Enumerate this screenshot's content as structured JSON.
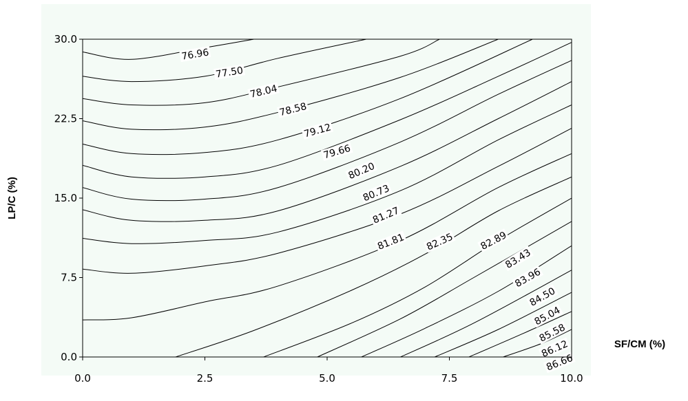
{
  "chart_data": {
    "type": "contour",
    "title": "",
    "xlabel": "SF/CM (%)",
    "ylabel": "LP/C (%)",
    "xlim": [
      0,
      10
    ],
    "ylim": [
      0,
      30
    ],
    "xticks": [
      "0.0",
      "2.5",
      "5.0",
      "7.5",
      "10.0"
    ],
    "yticks": [
      "0.0",
      "7.5",
      "15.0",
      "22.5",
      "30.0"
    ],
    "background_color": "#f4fbf6",
    "line_color": "#000000",
    "contours": [
      {
        "level": "76.96",
        "points": [
          [
            0,
            28.8
          ],
          [
            1,
            28.1
          ],
          [
            2.5,
            29.2
          ],
          [
            3.5,
            30
          ]
        ],
        "label_at": [
          2.3,
          28.6
        ]
      },
      {
        "level": "77.50",
        "points": [
          [
            0,
            26.5
          ],
          [
            1,
            26.0
          ],
          [
            2.5,
            26.5
          ],
          [
            4,
            28.2
          ],
          [
            5.8,
            30
          ]
        ],
        "label_at": [
          3.0,
          26.9
        ]
      },
      {
        "level": "78.04",
        "points": [
          [
            0,
            24.4
          ],
          [
            1,
            23.8
          ],
          [
            2.5,
            24.0
          ],
          [
            4,
            25.5
          ],
          [
            6.5,
            28.4
          ],
          [
            7.3,
            30
          ]
        ],
        "label_at": [
          3.7,
          25.1
        ]
      },
      {
        "level": "78.58",
        "points": [
          [
            0,
            22.3
          ],
          [
            1,
            21.5
          ],
          [
            2.5,
            21.7
          ],
          [
            4,
            23.1
          ],
          [
            6.5,
            26.4
          ],
          [
            8.5,
            30
          ]
        ],
        "label_at": [
          4.3,
          23.4
        ]
      },
      {
        "level": "79.12",
        "points": [
          [
            0,
            20.1
          ],
          [
            1,
            19.2
          ],
          [
            2.5,
            19.3
          ],
          [
            4,
            20.5
          ],
          [
            6.5,
            24.4
          ],
          [
            9.2,
            30
          ]
        ],
        "label_at": [
          4.8,
          21.4
        ]
      },
      {
        "level": "79.66",
        "points": [
          [
            0,
            18.1
          ],
          [
            1,
            17.0
          ],
          [
            2.5,
            17.0
          ],
          [
            4,
            18.1
          ],
          [
            6.5,
            22.4
          ],
          [
            8.5,
            26.5
          ],
          [
            10,
            29.7
          ]
        ],
        "label_at": [
          5.2,
          19.4
        ]
      },
      {
        "level": "80.20",
        "points": [
          [
            0,
            16.0
          ],
          [
            1,
            14.9
          ],
          [
            2.5,
            14.9
          ],
          [
            4,
            16.0
          ],
          [
            6.5,
            20.3
          ],
          [
            8.5,
            24.8
          ],
          [
            10,
            28.0
          ]
        ],
        "label_at": [
          5.7,
          17.6
        ]
      },
      {
        "level": "80.73",
        "points": [
          [
            0,
            13.9
          ],
          [
            1,
            12.9
          ],
          [
            2.5,
            12.9
          ],
          [
            4,
            13.8
          ],
          [
            6.5,
            18.0
          ],
          [
            8.5,
            22.5
          ],
          [
            10,
            26.0
          ]
        ],
        "label_at": [
          6.0,
          15.5
        ]
      },
      {
        "level": "81.27",
        "points": [
          [
            0,
            11.2
          ],
          [
            1,
            10.7
          ],
          [
            2.5,
            11.0
          ],
          [
            4,
            11.8
          ],
          [
            6.5,
            15.7
          ],
          [
            8.5,
            20.5
          ],
          [
            10,
            23.8
          ]
        ],
        "label_at": [
          6.2,
          13.4
        ]
      },
      {
        "level": "81.81",
        "points": [
          [
            0,
            8.3
          ],
          [
            1,
            7.9
          ],
          [
            2.5,
            8.6
          ],
          [
            4,
            9.8
          ],
          [
            6.5,
            13.5
          ],
          [
            8.5,
            18.0
          ],
          [
            10,
            21.6
          ]
        ],
        "label_at": [
          6.3,
          10.9
        ]
      },
      {
        "level": "82.35",
        "points": [
          [
            0,
            3.5
          ],
          [
            1,
            3.7
          ],
          [
            2.5,
            5.2
          ],
          [
            4,
            6.7
          ],
          [
            6.5,
            11.0
          ],
          [
            8.5,
            16.0
          ],
          [
            10,
            19.2
          ]
        ],
        "label_at": [
          7.3,
          10.9
        ]
      },
      {
        "level": "82.89",
        "points": [
          [
            1.9,
            0
          ],
          [
            3.5,
            2.5
          ],
          [
            5.5,
            6.3
          ],
          [
            7,
            9.7
          ],
          [
            8.5,
            13.8
          ],
          [
            10,
            17.0
          ]
        ],
        "label_at": [
          8.4,
          11.0
        ]
      },
      {
        "level": "83.43",
        "points": [
          [
            3.7,
            0
          ],
          [
            5.5,
            3.2
          ],
          [
            7,
            6.6
          ],
          [
            8.5,
            11.0
          ],
          [
            10,
            15.0
          ]
        ],
        "label_at": [
          8.9,
          9.3
        ]
      },
      {
        "level": "83.96",
        "points": [
          [
            4.8,
            0
          ],
          [
            6.5,
            3.6
          ],
          [
            8,
            7.5
          ],
          [
            10,
            12.8
          ]
        ],
        "label_at": [
          9.1,
          7.5
        ]
      },
      {
        "level": "84.50",
        "points": [
          [
            5.7,
            0
          ],
          [
            7,
            2.7
          ],
          [
            8.5,
            6.2
          ],
          [
            10,
            10.5
          ]
        ],
        "label_at": [
          9.4,
          5.7
        ]
      },
      {
        "level": "85.04",
        "points": [
          [
            6.5,
            0
          ],
          [
            8,
            3.2
          ],
          [
            10,
            8.2
          ]
        ],
        "label_at": [
          9.5,
          3.9
        ]
      },
      {
        "level": "85.58",
        "points": [
          [
            7.2,
            0
          ],
          [
            8.5,
            2.6
          ],
          [
            10,
            6.1
          ]
        ],
        "label_at": [
          9.6,
          2.3
        ]
      },
      {
        "level": "86.12",
        "points": [
          [
            7.9,
            0
          ],
          [
            9,
            2.2
          ],
          [
            10,
            4.3
          ]
        ],
        "label_at": [
          9.65,
          0.8
        ]
      },
      {
        "level": "86.66",
        "points": [
          [
            8.6,
            0
          ],
          [
            9.4,
            1.3
          ],
          [
            10,
            2.6
          ]
        ],
        "label_at": [
          9.75,
          -0.5
        ]
      }
    ]
  }
}
